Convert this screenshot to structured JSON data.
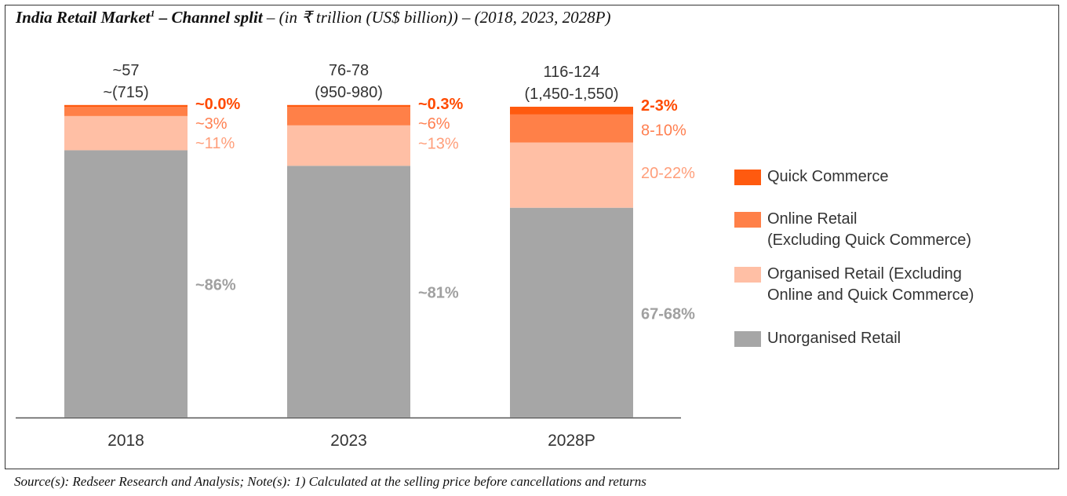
{
  "title": {
    "main": "India Retail Market",
    "superscript": "1",
    "bold_tail": " – Channel split",
    "rest": " – (in ₹ trillion (US$ billion)) – (2018, 2023, 2028P)"
  },
  "source_note": "Source(s): Redseer Research and Analysis; Note(s): 1) Calculated at the selling price before cancellations and returns",
  "colors": {
    "quick_commerce": "#FF5A0F",
    "online_retail": "#FF8048",
    "organised_retail": "#FFBFA5",
    "unorganised_retail": "#A6A6A6",
    "unorganised_label": "#A0A0A0",
    "organised_label": "#FF9E7A",
    "online_label": "#FF7F50",
    "quick_label": "#FF4A00"
  },
  "chart_data": {
    "type": "bar",
    "stacked": true,
    "categories": [
      "2018",
      "2023",
      "2028P"
    ],
    "totals": [
      {
        "line1": "~57",
        "line2": "~(715)"
      },
      {
        "line1": "76-78",
        "line2": "(950-980)"
      },
      {
        "line1": "116-124",
        "line2": "(1,450-1,550)"
      }
    ],
    "series": [
      {
        "name": "Unorganised Retail",
        "color_key": "unorganised_retail",
        "label_color_key": "unorganised_label",
        "values": [
          86,
          81,
          67.5
        ],
        "labels": [
          "~86%",
          "~81%",
          "67-68%"
        ]
      },
      {
        "name": "Organised Retail (Excluding\nOnline and Quick Commerce)",
        "color_key": "organised_retail",
        "label_color_key": "organised_label",
        "values": [
          11,
          13,
          21
        ],
        "labels": [
          "~11%",
          "~13%",
          "20-22%"
        ]
      },
      {
        "name": "Online Retail\n(Excluding Quick Commerce)",
        "color_key": "online_retail",
        "label_color_key": "online_label",
        "values": [
          3,
          6,
          9
        ],
        "labels": [
          "~3%",
          "~6%",
          "8-10%"
        ]
      },
      {
        "name": "Quick Commerce",
        "color_key": "quick_commerce",
        "label_color_key": "quick_label",
        "values": [
          0.0,
          0.3,
          2.5
        ],
        "labels": [
          "~0.0%",
          "~0.3%",
          "2-3%"
        ]
      }
    ],
    "ylim": [
      0,
      100
    ],
    "grid": false,
    "legend_position": "right"
  }
}
